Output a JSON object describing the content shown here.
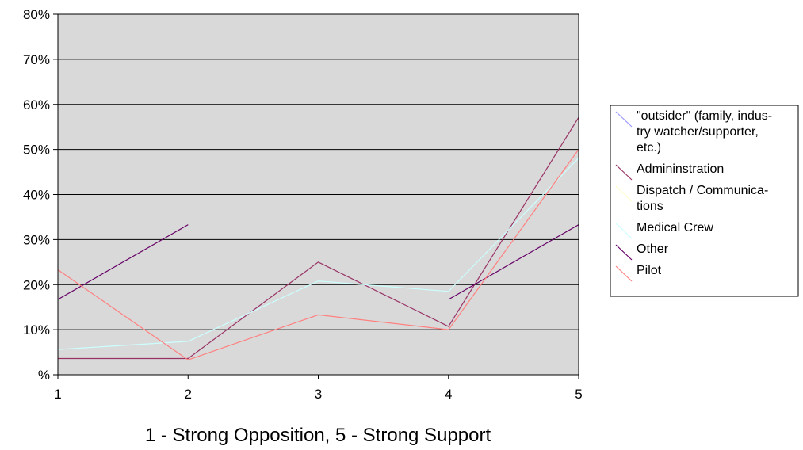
{
  "chart_data": {
    "type": "line",
    "title": "",
    "xlabel": "1 - Strong Opposition, 5 - Strong Support",
    "ylabel": "",
    "x": [
      1,
      2,
      3,
      4,
      5
    ],
    "x_ticks": [
      "1",
      "2",
      "3",
      "4",
      "5"
    ],
    "y_ticks": [
      "%",
      "10%",
      "20%",
      "30%",
      "40%",
      "50%",
      "60%",
      "70%",
      "80%"
    ],
    "ylim": [
      0,
      0.8
    ],
    "grid": "horizontal",
    "legend_position": "right",
    "series": [
      {
        "name": "\"outsider\" (family, industry watcher/supporter, etc.)",
        "legend_lines": [
          "\"outsider\" (family, indus-",
          "try watcher/supporter,",
          "etc.)"
        ],
        "color": "#9999ff",
        "values": [
          null,
          null,
          null,
          null,
          null
        ]
      },
      {
        "name": "Admininstration",
        "legend_lines": [
          "Admininstration"
        ],
        "color": "#993366",
        "values": [
          0.036,
          0.036,
          0.25,
          0.107,
          0.571
        ]
      },
      {
        "name": "Dispatch / Communications",
        "legend_lines": [
          "Dispatch / Communica-",
          "tions"
        ],
        "color": "#ffffcc",
        "values": [
          null,
          null,
          null,
          null,
          null
        ]
      },
      {
        "name": "Medical Crew",
        "legend_lines": [
          "Medical Crew"
        ],
        "color": "#ccffff",
        "values": [
          0.056,
          0.074,
          0.208,
          0.185,
          0.481
        ]
      },
      {
        "name": "Other",
        "legend_lines": [
          "Other"
        ],
        "color": "#660066",
        "values": [
          0.167,
          0.333,
          null,
          0.167,
          0.333
        ]
      },
      {
        "name": "Pilot",
        "legend_lines": [
          "Pilot"
        ],
        "color": "#ff8080",
        "values": [
          0.233,
          0.033,
          0.133,
          0.1,
          0.5
        ]
      }
    ]
  }
}
